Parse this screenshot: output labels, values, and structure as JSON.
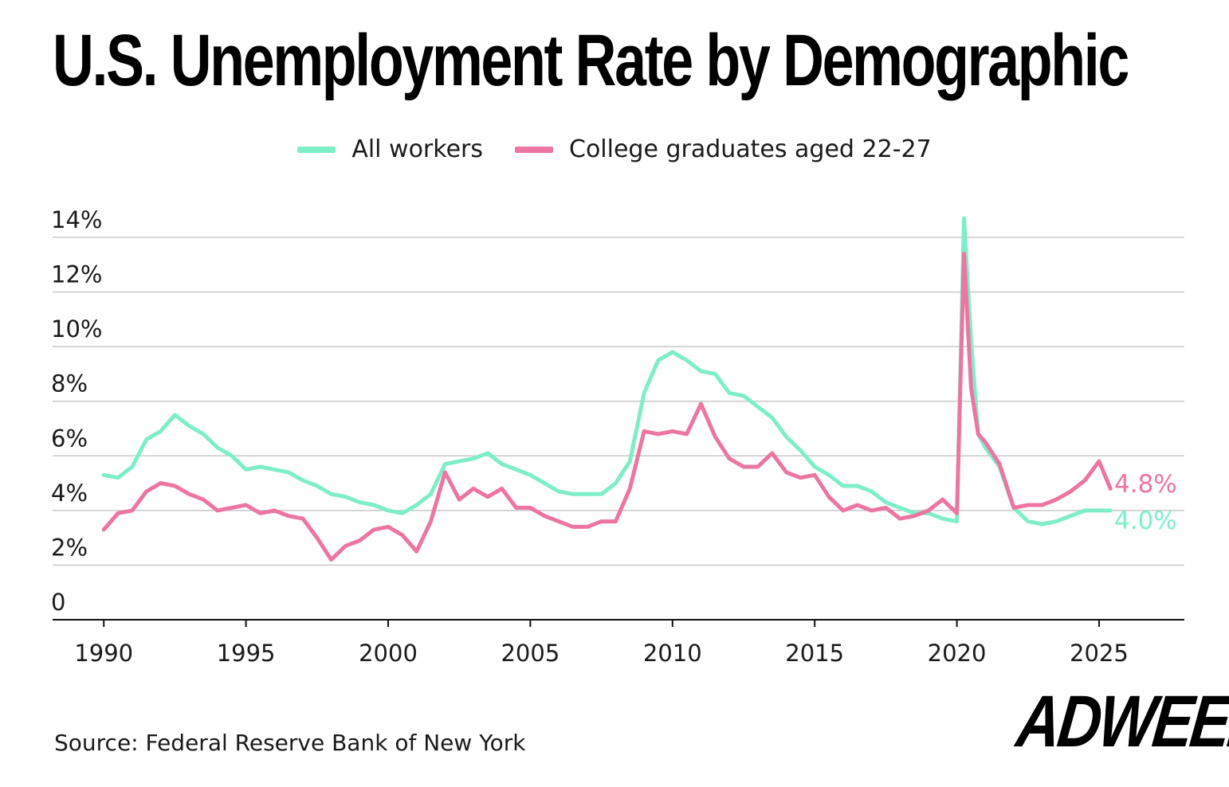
{
  "title": "U.S. Unemployment Rate by Demographic",
  "legend": [
    {
      "label": "All workers",
      "color": "#7eeec7"
    },
    {
      "label": "College graduates aged 22-27",
      "color": "#ec75a1"
    }
  ],
  "source": "Source: Federal Reserve Bank of New York",
  "logo": "ADWEEK",
  "chart_data": {
    "type": "line",
    "title": "U.S. Unemployment Rate by Demographic",
    "xlabel": "",
    "ylabel": "",
    "xlim": [
      1988.2,
      2028.0
    ],
    "ylim": [
      0,
      14
    ],
    "x_ticks": [
      "1990",
      "1995",
      "2000",
      "2005",
      "2010",
      "2015",
      "2020",
      "2025"
    ],
    "y_ticks": [
      "0",
      "2%",
      "4%",
      "6%",
      "8%",
      "10%",
      "12%",
      "14%"
    ],
    "grid": true,
    "legend_position": "top",
    "end_labels": [
      "4.8%",
      "4.0%"
    ],
    "series": [
      {
        "name": "All workers",
        "color": "#7eeec7",
        "points": [
          [
            1990.0,
            5.3
          ],
          [
            1990.5,
            5.2
          ],
          [
            1991.0,
            5.6
          ],
          [
            1991.5,
            6.6
          ],
          [
            1992.0,
            6.9
          ],
          [
            1992.5,
            7.5
          ],
          [
            1993.0,
            7.1
          ],
          [
            1993.5,
            6.8
          ],
          [
            1994.0,
            6.3
          ],
          [
            1994.5,
            6.0
          ],
          [
            1995.0,
            5.5
          ],
          [
            1995.5,
            5.6
          ],
          [
            1996.0,
            5.5
          ],
          [
            1996.5,
            5.4
          ],
          [
            1997.0,
            5.1
          ],
          [
            1997.5,
            4.9
          ],
          [
            1998.0,
            4.6
          ],
          [
            1998.5,
            4.5
          ],
          [
            1999.0,
            4.3
          ],
          [
            1999.5,
            4.2
          ],
          [
            2000.0,
            4.0
          ],
          [
            2000.5,
            3.9
          ],
          [
            2001.0,
            4.2
          ],
          [
            2001.5,
            4.6
          ],
          [
            2002.0,
            5.7
          ],
          [
            2002.5,
            5.8
          ],
          [
            2003.0,
            5.9
          ],
          [
            2003.5,
            6.1
          ],
          [
            2004.0,
            5.7
          ],
          [
            2004.5,
            5.5
          ],
          [
            2005.0,
            5.3
          ],
          [
            2005.5,
            5.0
          ],
          [
            2006.0,
            4.7
          ],
          [
            2006.5,
            4.6
          ],
          [
            2007.0,
            4.6
          ],
          [
            2007.5,
            4.6
          ],
          [
            2008.0,
            5.0
          ],
          [
            2008.5,
            5.8
          ],
          [
            2009.0,
            8.3
          ],
          [
            2009.5,
            9.5
          ],
          [
            2010.0,
            9.8
          ],
          [
            2010.5,
            9.5
          ],
          [
            2011.0,
            9.1
          ],
          [
            2011.5,
            9.0
          ],
          [
            2012.0,
            8.3
          ],
          [
            2012.5,
            8.2
          ],
          [
            2013.0,
            7.8
          ],
          [
            2013.5,
            7.4
          ],
          [
            2014.0,
            6.7
          ],
          [
            2014.5,
            6.2
          ],
          [
            2015.0,
            5.6
          ],
          [
            2015.5,
            5.3
          ],
          [
            2016.0,
            4.9
          ],
          [
            2016.5,
            4.9
          ],
          [
            2017.0,
            4.7
          ],
          [
            2017.5,
            4.3
          ],
          [
            2018.0,
            4.1
          ],
          [
            2018.5,
            3.9
          ],
          [
            2019.0,
            3.9
          ],
          [
            2019.5,
            3.7
          ],
          [
            2020.0,
            3.6
          ],
          [
            2020.25,
            14.7
          ],
          [
            2020.5,
            10.2
          ],
          [
            2020.75,
            6.8
          ],
          [
            2021.0,
            6.3
          ],
          [
            2021.5,
            5.6
          ],
          [
            2022.0,
            4.1
          ],
          [
            2022.5,
            3.6
          ],
          [
            2023.0,
            3.5
          ],
          [
            2023.5,
            3.6
          ],
          [
            2024.0,
            3.8
          ],
          [
            2024.5,
            4.0
          ],
          [
            2025.0,
            4.0
          ],
          [
            2025.4,
            4.0
          ]
        ]
      },
      {
        "name": "College graduates aged 22-27",
        "color": "#ec75a1",
        "points": [
          [
            1990.0,
            3.3
          ],
          [
            1990.5,
            3.9
          ],
          [
            1991.0,
            4.0
          ],
          [
            1991.5,
            4.7
          ],
          [
            1992.0,
            5.0
          ],
          [
            1992.5,
            4.9
          ],
          [
            1993.0,
            4.6
          ],
          [
            1993.5,
            4.4
          ],
          [
            1994.0,
            4.0
          ],
          [
            1994.5,
            4.1
          ],
          [
            1995.0,
            4.2
          ],
          [
            1995.5,
            3.9
          ],
          [
            1996.0,
            4.0
          ],
          [
            1996.5,
            3.8
          ],
          [
            1997.0,
            3.7
          ],
          [
            1997.5,
            3.0
          ],
          [
            1998.0,
            2.2
          ],
          [
            1998.5,
            2.7
          ],
          [
            1999.0,
            2.9
          ],
          [
            1999.5,
            3.3
          ],
          [
            2000.0,
            3.4
          ],
          [
            2000.5,
            3.1
          ],
          [
            2001.0,
            2.5
          ],
          [
            2001.5,
            3.6
          ],
          [
            2002.0,
            5.4
          ],
          [
            2002.5,
            4.4
          ],
          [
            2003.0,
            4.8
          ],
          [
            2003.5,
            4.5
          ],
          [
            2004.0,
            4.8
          ],
          [
            2004.5,
            4.1
          ],
          [
            2005.0,
            4.1
          ],
          [
            2005.5,
            3.8
          ],
          [
            2006.0,
            3.6
          ],
          [
            2006.5,
            3.4
          ],
          [
            2007.0,
            3.4
          ],
          [
            2007.5,
            3.6
          ],
          [
            2008.0,
            3.6
          ],
          [
            2008.5,
            4.8
          ],
          [
            2009.0,
            6.9
          ],
          [
            2009.5,
            6.8
          ],
          [
            2010.0,
            6.9
          ],
          [
            2010.5,
            6.8
          ],
          [
            2011.0,
            7.9
          ],
          [
            2011.5,
            6.7
          ],
          [
            2012.0,
            5.9
          ],
          [
            2012.5,
            5.6
          ],
          [
            2013.0,
            5.6
          ],
          [
            2013.5,
            6.1
          ],
          [
            2014.0,
            5.4
          ],
          [
            2014.5,
            5.2
          ],
          [
            2015.0,
            5.3
          ],
          [
            2015.5,
            4.5
          ],
          [
            2016.0,
            4.0
          ],
          [
            2016.5,
            4.2
          ],
          [
            2017.0,
            4.0
          ],
          [
            2017.5,
            4.1
          ],
          [
            2018.0,
            3.7
          ],
          [
            2018.5,
            3.8
          ],
          [
            2019.0,
            4.0
          ],
          [
            2019.5,
            4.4
          ],
          [
            2020.0,
            3.9
          ],
          [
            2020.25,
            13.4
          ],
          [
            2020.5,
            8.5
          ],
          [
            2020.75,
            6.8
          ],
          [
            2021.0,
            6.5
          ],
          [
            2021.5,
            5.7
          ],
          [
            2022.0,
            4.1
          ],
          [
            2022.5,
            4.2
          ],
          [
            2023.0,
            4.2
          ],
          [
            2023.5,
            4.4
          ],
          [
            2024.0,
            4.7
          ],
          [
            2024.5,
            5.1
          ],
          [
            2025.0,
            5.8
          ],
          [
            2025.4,
            4.8
          ]
        ]
      }
    ]
  }
}
